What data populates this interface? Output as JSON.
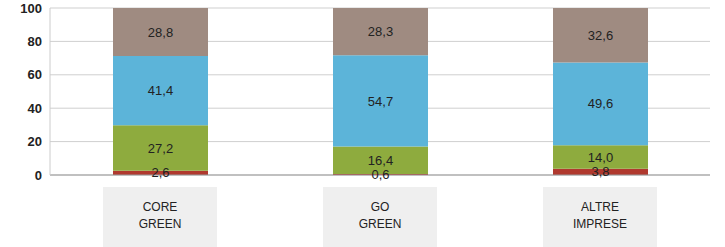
{
  "chart_data": {
    "type": "bar",
    "stacked": true,
    "data_labels": true,
    "grid": true,
    "categories": [
      "CORE GREEN",
      "GO GREEN",
      "ALTRE IMPRESE"
    ],
    "ylim": [
      0,
      100
    ],
    "yticks": [
      0,
      20,
      40,
      60,
      80,
      100
    ],
    "series": [
      {
        "color": "#b0392e",
        "values": [
          2.6,
          0.6,
          3.8
        ],
        "value_labels": [
          "2,6",
          "0,6",
          "3,8"
        ]
      },
      {
        "color": "#8eab3e",
        "values": [
          27.2,
          16.4,
          14.0
        ],
        "value_labels": [
          "27,2",
          "16,4",
          "14,0"
        ]
      },
      {
        "color": "#5cb4d9",
        "values": [
          41.4,
          54.7,
          49.6
        ],
        "value_labels": [
          "41,4",
          "54,7",
          "49,6"
        ]
      },
      {
        "color": "#9f8b81",
        "values": [
          28.8,
          28.3,
          32.6
        ],
        "value_labels": [
          "28,8",
          "28,3",
          "32,6"
        ]
      }
    ]
  }
}
